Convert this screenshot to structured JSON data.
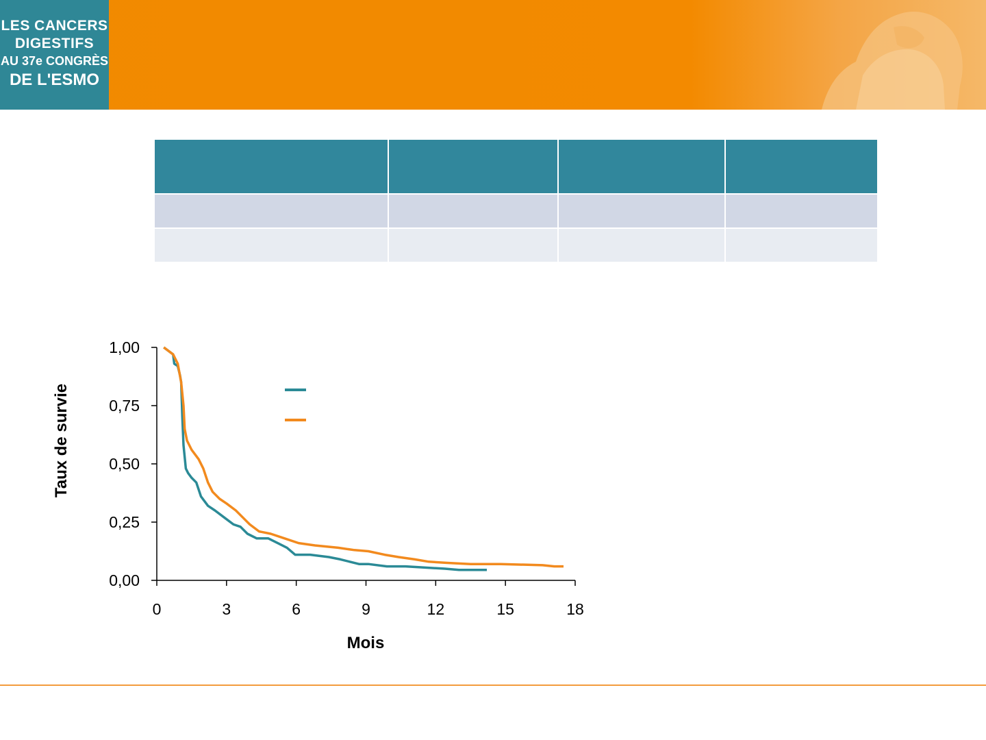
{
  "logo": {
    "line1": "LES CANCERS",
    "line2": "DIGESTIFS",
    "line3": "AU 37e CONGRÈS",
    "line4": "DE L'ESMO"
  },
  "colors": {
    "banner": "#f18a00",
    "logo_bg": "#2f8796",
    "table_header": "#31879c",
    "series_teal": "#2b8a96",
    "series_orange": "#f28a1e"
  },
  "table": {
    "header": [
      "",
      "",
      "",
      ""
    ],
    "rows": [
      [
        "",
        "",
        "",
        ""
      ],
      [
        "",
        "",
        "",
        ""
      ]
    ]
  },
  "chart_data": {
    "type": "line",
    "xlabel": "Mois",
    "ylabel": "Taux de survie",
    "xlim": [
      0,
      18
    ],
    "ylim": [
      0,
      1
    ],
    "x_ticks": [
      0,
      3,
      6,
      9,
      12,
      15,
      18
    ],
    "x_tick_labels": [
      "0",
      "3",
      "6",
      "9",
      "12",
      "15",
      "18"
    ],
    "y_ticks": [
      0,
      0.25,
      0.5,
      0.75,
      1
    ],
    "y_tick_labels": [
      "0,00",
      "0,25",
      "0,50",
      "0,75",
      "1,00"
    ],
    "grid": false,
    "legend": "top-center",
    "series": [
      {
        "color": "#2b8a96",
        "x": [
          0.3,
          0.7,
          0.75,
          0.9,
          1.0,
          1.05,
          1.1,
          1.15,
          1.25,
          1.3,
          1.35,
          1.5,
          1.7,
          1.9,
          2.2,
          2.5,
          2.9,
          3.3,
          3.6,
          3.9,
          4.3,
          4.8,
          5.2,
          5.6,
          5.95,
          6.6,
          7.4,
          7.9,
          8.3,
          8.7,
          9.1,
          9.9,
          10.7,
          11.5,
          12.4,
          13.0,
          13.6,
          14.2
        ],
        "y": [
          1.0,
          0.97,
          0.93,
          0.92,
          0.88,
          0.85,
          0.7,
          0.58,
          0.48,
          0.47,
          0.46,
          0.44,
          0.42,
          0.36,
          0.32,
          0.3,
          0.27,
          0.24,
          0.23,
          0.2,
          0.18,
          0.18,
          0.16,
          0.14,
          0.11,
          0.11,
          0.1,
          0.09,
          0.08,
          0.07,
          0.07,
          0.06,
          0.06,
          0.055,
          0.05,
          0.045,
          0.045,
          0.045
        ]
      },
      {
        "color": "#f28a1e",
        "x": [
          0.3,
          0.7,
          0.9,
          1.05,
          1.15,
          1.2,
          1.3,
          1.5,
          1.8,
          2.0,
          2.2,
          2.4,
          2.7,
          3.0,
          3.4,
          3.7,
          4.0,
          4.4,
          4.9,
          5.5,
          6.1,
          6.8,
          7.8,
          8.5,
          9.1,
          9.8,
          10.4,
          11.1,
          11.7,
          12.5,
          13.5,
          14.8,
          16.6,
          17.1,
          17.5
        ],
        "y": [
          1.0,
          0.97,
          0.93,
          0.85,
          0.75,
          0.65,
          0.6,
          0.56,
          0.52,
          0.48,
          0.42,
          0.38,
          0.35,
          0.33,
          0.3,
          0.27,
          0.24,
          0.21,
          0.2,
          0.18,
          0.16,
          0.15,
          0.14,
          0.13,
          0.125,
          0.11,
          0.1,
          0.09,
          0.08,
          0.075,
          0.07,
          0.07,
          0.065,
          0.06,
          0.06
        ]
      }
    ]
  }
}
